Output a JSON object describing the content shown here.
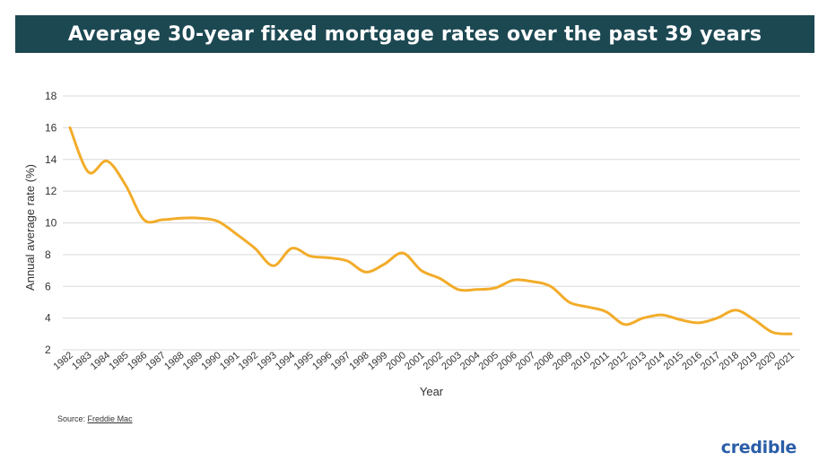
{
  "title": "Average 30-year fixed mortgage rates over the past 39 years",
  "source_label": "Source:",
  "source_name": "Freddie Mac",
  "brand": "credible",
  "colors": {
    "banner": "#1c4852",
    "line": "#f2ac2a",
    "grid": "#d9d9d9",
    "brand": "#2b5ea8"
  },
  "chart_data": {
    "type": "line",
    "title": "Average 30-year fixed mortgage rates over the past 39 years",
    "xlabel": "Year",
    "ylabel": "Annual average rate (%)",
    "ylim": [
      2,
      18
    ],
    "yticks": [
      2,
      4,
      6,
      8,
      10,
      12,
      14,
      16,
      18
    ],
    "grid": true,
    "categories": [
      "1982",
      "1983",
      "1984",
      "1985",
      "1986",
      "1987",
      "1988",
      "1989",
      "1990",
      "1991",
      "1992",
      "1993",
      "1994",
      "1995",
      "1996",
      "1997",
      "1998",
      "1999",
      "2000",
      "2001",
      "2002",
      "2003",
      "2004",
      "2005",
      "2006",
      "2007",
      "2008",
      "2009",
      "2010",
      "2011",
      "2012",
      "2013",
      "2014",
      "2015",
      "2016",
      "2017",
      "2018",
      "2019",
      "2020",
      "2021"
    ],
    "series": [
      {
        "values": [
          16.0,
          13.2,
          13.9,
          12.4,
          10.2,
          10.2,
          10.3,
          10.3,
          10.1,
          9.3,
          8.4,
          7.3,
          8.4,
          7.9,
          7.8,
          7.6,
          6.9,
          7.4,
          8.1,
          7.0,
          6.5,
          5.8,
          5.8,
          5.9,
          6.4,
          6.3,
          6.0,
          5.0,
          4.7,
          4.4,
          3.6,
          4.0,
          4.2,
          3.9,
          3.7,
          4.0,
          4.5,
          3.9,
          3.1,
          3.0
        ]
      }
    ]
  }
}
